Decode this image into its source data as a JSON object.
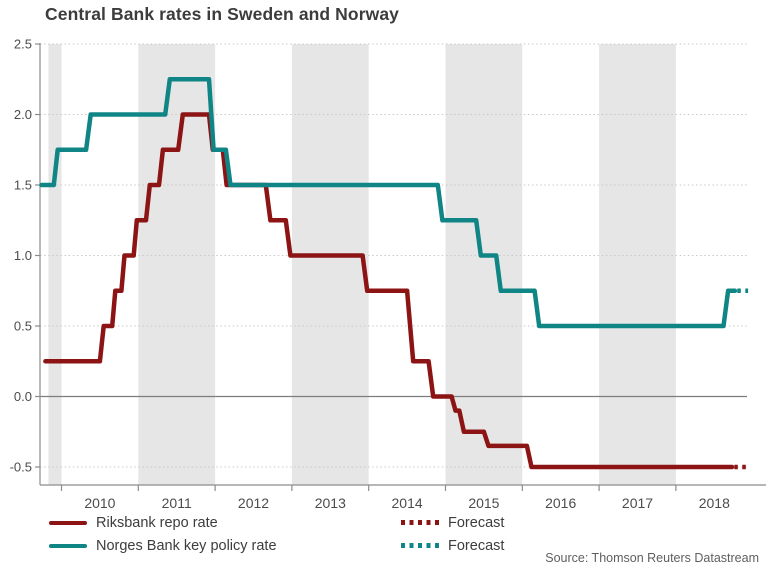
{
  "title": "Central Bank rates in Sweden and Norway",
  "source_note": "Source: Thomson Reuters Datastream",
  "colors": {
    "riksbank": "#8c1414",
    "norges": "#108585",
    "band": "#e6e6e6",
    "grid_dotted": "#c9c9c9",
    "zero_line": "#7d7d7d",
    "axis": "#8c8c8c",
    "tick_label": "#4c4c4c",
    "title_text": "#3c3c3c"
  },
  "legend": {
    "items": [
      {
        "label": "Riksbank repo rate",
        "series": "riksbank",
        "style": "solid"
      },
      {
        "label": "Forecast",
        "series": "riksbank",
        "style": "dotted"
      },
      {
        "label": "Norges Bank key policy rate",
        "series": "norges",
        "style": "solid"
      },
      {
        "label": "Forecast",
        "series": "norges",
        "style": "dotted"
      }
    ]
  },
  "chart_data": {
    "type": "line",
    "title": "Central Bank rates in Sweden and Norway",
    "xlabel": "",
    "ylabel": "",
    "xlim": [
      2009.72,
      2018.95
    ],
    "ylim": [
      -0.5,
      2.5
    ],
    "grid": "dotted horizontal gridlines, solid line at 0.0",
    "legend_position": "bottom-left",
    "y_ticks": [
      2.5,
      2.0,
      1.5,
      1.0,
      0.5,
      0.0,
      -0.5
    ],
    "y_tick_labels": [
      "2.5",
      "2.0",
      "1.5",
      "1.0",
      "0.5",
      "0.0",
      "-0.5"
    ],
    "x_tick_boundaries": [
      2010,
      2011,
      2012,
      2013,
      2014,
      2015,
      2016,
      2017,
      2018
    ],
    "x_year_labels": [
      "2010",
      "2011",
      "2012",
      "2013",
      "2014",
      "2015",
      "2016",
      "2017",
      "2018"
    ],
    "shaded_year_bands": [
      [
        2009.83,
        2010
      ],
      [
        2011,
        2012
      ],
      [
        2013,
        2014
      ],
      [
        2015,
        2016
      ],
      [
        2017,
        2018
      ]
    ],
    "series": [
      {
        "name": "Riksbank repo rate",
        "color": "#8c1414",
        "style": "solid",
        "points": [
          [
            2009.79,
            0.25
          ],
          [
            2010.5,
            0.25
          ],
          [
            2010.55,
            0.5
          ],
          [
            2010.66,
            0.5
          ],
          [
            2010.7,
            0.75
          ],
          [
            2010.78,
            0.75
          ],
          [
            2010.82,
            1.0
          ],
          [
            2010.94,
            1.0
          ],
          [
            2010.98,
            1.25
          ],
          [
            2011.1,
            1.25
          ],
          [
            2011.15,
            1.5
          ],
          [
            2011.27,
            1.5
          ],
          [
            2011.32,
            1.75
          ],
          [
            2011.52,
            1.75
          ],
          [
            2011.58,
            2.0
          ],
          [
            2011.92,
            2.0
          ],
          [
            2011.97,
            1.75
          ],
          [
            2012.1,
            1.75
          ],
          [
            2012.15,
            1.5
          ],
          [
            2012.66,
            1.5
          ],
          [
            2012.72,
            1.25
          ],
          [
            2012.92,
            1.25
          ],
          [
            2012.98,
            1.0
          ],
          [
            2013.92,
            1.0
          ],
          [
            2013.98,
            0.75
          ],
          [
            2014.5,
            0.75
          ],
          [
            2014.58,
            0.25
          ],
          [
            2014.78,
            0.25
          ],
          [
            2014.84,
            0.0
          ],
          [
            2015.08,
            0.0
          ],
          [
            2015.13,
            -0.1
          ],
          [
            2015.18,
            -0.1
          ],
          [
            2015.24,
            -0.25
          ],
          [
            2015.5,
            -0.25
          ],
          [
            2015.56,
            -0.35
          ],
          [
            2016.06,
            -0.35
          ],
          [
            2016.12,
            -0.5
          ],
          [
            2018.73,
            -0.5
          ]
        ]
      },
      {
        "name": "Riksbank forecast",
        "color": "#8c1414",
        "style": "dotted",
        "points": [
          [
            2018.76,
            -0.5
          ],
          [
            2018.94,
            -0.5
          ]
        ]
      },
      {
        "name": "Norges Bank key policy rate",
        "color": "#108585",
        "style": "solid",
        "points": [
          [
            2009.74,
            1.5
          ],
          [
            2009.9,
            1.5
          ],
          [
            2009.95,
            1.75
          ],
          [
            2010.32,
            1.75
          ],
          [
            2010.38,
            2.0
          ],
          [
            2011.35,
            2.0
          ],
          [
            2011.41,
            2.25
          ],
          [
            2011.92,
            2.25
          ],
          [
            2011.98,
            1.75
          ],
          [
            2012.14,
            1.75
          ],
          [
            2012.2,
            1.5
          ],
          [
            2014.9,
            1.5
          ],
          [
            2014.96,
            1.25
          ],
          [
            2015.4,
            1.25
          ],
          [
            2015.46,
            1.0
          ],
          [
            2015.66,
            1.0
          ],
          [
            2015.72,
            0.75
          ],
          [
            2016.16,
            0.75
          ],
          [
            2016.22,
            0.5
          ],
          [
            2018.62,
            0.5
          ],
          [
            2018.68,
            0.75
          ],
          [
            2018.77,
            0.75
          ]
        ]
      },
      {
        "name": "Norges Bank forecast",
        "color": "#108585",
        "style": "dotted",
        "points": [
          [
            2018.8,
            0.75
          ],
          [
            2018.94,
            0.75
          ]
        ]
      }
    ]
  }
}
